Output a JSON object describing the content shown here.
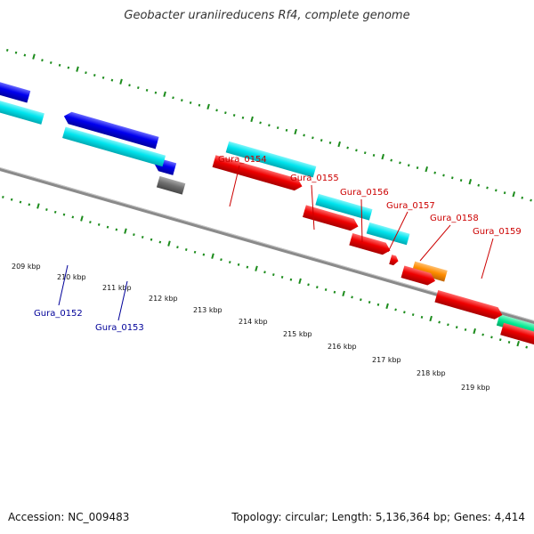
{
  "title": "Geobacter uraniireducens Rf4, complete genome",
  "footer": {
    "accession": "Accession: NC_009483",
    "summary": "Topology: circular; Length: 5,136,364 bp; Genes: 4,414"
  },
  "colors": {
    "backbone": "#8a8a8a",
    "tick": "#1c8c1c",
    "forward_label": "#cc0000",
    "reverse_label": "#000099"
  },
  "scale_labels": [
    "209 kbp",
    "210 kbp",
    "211 kbp",
    "212 kbp",
    "213 kbp",
    "214 kbp",
    "215 kbp",
    "216 kbp",
    "217 kbp",
    "218 kbp",
    "219 kbp"
  ],
  "gene_labels": {
    "forward": [
      "Gura_0154",
      "Gura_0155",
      "Gura_0156",
      "Gura_0157",
      "Gura_0158",
      "Gura_0159"
    ],
    "reverse": [
      "Gura_0152",
      "Gura_0153"
    ]
  },
  "features": [
    {
      "lane": "fwd_outer",
      "color": "#00e8f0"
    },
    {
      "lane": "fwd_outer",
      "color": "#00e8f0"
    },
    {
      "lane": "fwd_outer",
      "color": "#00e8f0"
    },
    {
      "lane": "fwd_outer",
      "color": "#ff8c00"
    },
    {
      "lane": "fwd_outer",
      "color": "#00e890"
    },
    {
      "lane": "fwd_inner",
      "color": "#ee0000"
    },
    {
      "lane": "fwd_inner",
      "color": "#ee0000"
    },
    {
      "lane": "fwd_inner",
      "color": "#ee0000"
    },
    {
      "lane": "fwd_inner",
      "color": "#ee0000"
    },
    {
      "lane": "fwd_inner",
      "color": "#ee0000"
    },
    {
      "lane": "fwd_inner",
      "color": "#ee0000"
    },
    {
      "lane": "fwd_inner",
      "color": "#ee0000"
    },
    {
      "lane": "rev_outer",
      "color": "#0000ee"
    },
    {
      "lane": "rev_outer",
      "color": "#0000ee"
    },
    {
      "lane": "rev_outer",
      "color": "#0000ee"
    },
    {
      "lane": "rev_inner",
      "color": "#00e8f0"
    },
    {
      "lane": "rev_inner",
      "color": "#00e8f0"
    },
    {
      "lane": "rev_inner",
      "color": "#707070"
    }
  ]
}
